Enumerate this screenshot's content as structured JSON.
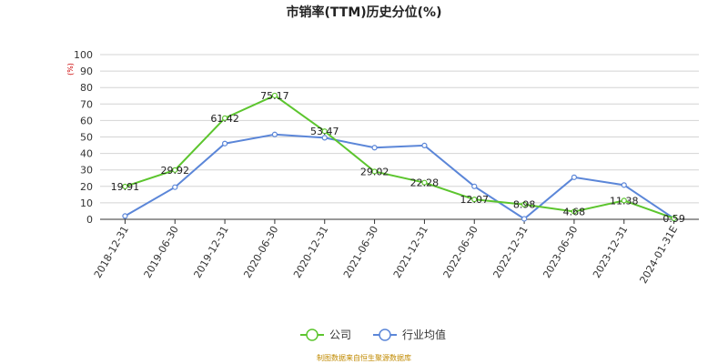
{
  "chart_data": {
    "type": "line",
    "title": "市销率(TTM)历史分位(%)",
    "y_unit": "(%)",
    "categories": [
      "2018-12-31",
      "2019-06-30",
      "2019-12-31",
      "2020-06-30",
      "2020-12-31",
      "2021-06-30",
      "2021-12-31",
      "2022-06-30",
      "2022-12-31",
      "2023-06-30",
      "2023-12-31",
      "2024-01-31E"
    ],
    "series": [
      {
        "name": "公司",
        "color": "#5cc52e",
        "values": [
          19.91,
          29.92,
          61.42,
          75.17,
          53.47,
          29.02,
          22.28,
          12.07,
          8.98,
          4.68,
          11.38,
          0.59
        ],
        "show_labels": true
      },
      {
        "name": "行业均值",
        "color": "#5b86d8",
        "values": [
          2,
          19.5,
          46,
          51.5,
          49.5,
          43.5,
          44.8,
          20,
          0.3,
          25.5,
          20.8,
          0.5
        ],
        "show_labels": false
      }
    ],
    "ylim": [
      0,
      100
    ],
    "yticks": [
      0,
      10,
      20,
      30,
      40,
      50,
      60,
      70,
      80,
      90,
      100
    ],
    "grid": true,
    "legend_position": "bottom-center"
  },
  "source_text": "制图数据来自恒生聚源数据库"
}
